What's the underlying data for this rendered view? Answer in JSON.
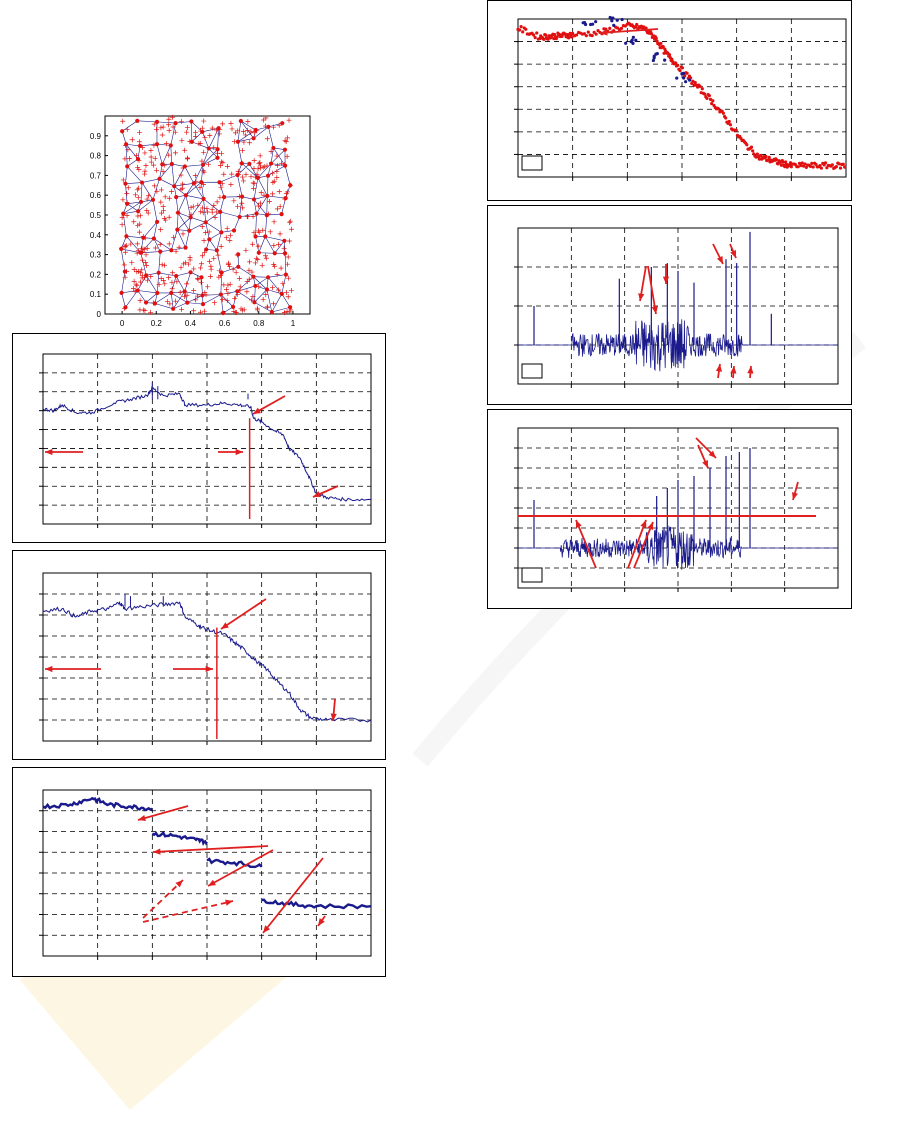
{
  "colors": {
    "series": "#1a1a8c",
    "marker": "#e01010",
    "arrow": "#e02020",
    "grid": "#000000"
  },
  "chart_data": [
    {
      "id": "scatter-network",
      "type": "scatter",
      "xlim": [
        -0.1,
        1.1
      ],
      "ylim": [
        0,
        1
      ],
      "xticks": [
        "0",
        "0.2",
        "0.4",
        "0.6",
        "0.8",
        "1"
      ],
      "yticks": [
        "0",
        "0.1",
        "0.2",
        "0.3",
        "0.4",
        "0.5",
        "0.6",
        "0.7",
        "0.8",
        "0.9"
      ],
      "grid": false,
      "series": [
        {
          "marker": "plus",
          "color": "#e01010",
          "note_count": 420
        },
        {
          "marker": "dot",
          "color": "#e01010",
          "note_count": 120
        }
      ]
    },
    {
      "id": "line-a",
      "type": "line",
      "xlim": [
        0,
        6
      ],
      "ylim": [
        0,
        9
      ],
      "grid": true,
      "series": [
        {
          "color": "#1a1a8c",
          "points": [
            [
              0,
              6.1
            ],
            [
              0.2,
              6.0
            ],
            [
              0.35,
              6.3
            ],
            [
              0.6,
              5.9
            ],
            [
              0.9,
              5.9
            ],
            [
              1.3,
              6.4
            ],
            [
              1.6,
              6.6
            ],
            [
              1.9,
              6.8
            ],
            [
              2.0,
              7.2
            ],
            [
              2.2,
              6.8
            ],
            [
              2.5,
              6.9
            ],
            [
              2.6,
              6.3
            ],
            [
              3.0,
              6.3
            ],
            [
              3.3,
              6.4
            ],
            [
              3.6,
              6.3
            ],
            [
              3.8,
              6.2
            ],
            [
              3.85,
              5.6
            ],
            [
              4.0,
              5.4
            ],
            [
              4.2,
              5.0
            ],
            [
              4.4,
              4.7
            ],
            [
              4.5,
              4.0
            ],
            [
              4.7,
              3.5
            ],
            [
              4.85,
              2.6
            ],
            [
              5.0,
              1.6
            ],
            [
              5.2,
              1.4
            ],
            [
              5.5,
              1.3
            ],
            [
              6.0,
              1.3
            ]
          ]
        }
      ]
    },
    {
      "id": "line-b",
      "type": "line",
      "xlim": [
        0,
        6
      ],
      "ylim": [
        0,
        8
      ],
      "grid": true,
      "series": [
        {
          "color": "#1a1a8c",
          "points": [
            [
              0,
              6.2
            ],
            [
              0.35,
              6.3
            ],
            [
              0.6,
              5.9
            ],
            [
              0.9,
              6.2
            ],
            [
              1.2,
              6.3
            ],
            [
              1.4,
              6.6
            ],
            [
              1.5,
              6.3
            ],
            [
              1.8,
              6.4
            ],
            [
              2.2,
              6.5
            ],
            [
              2.5,
              6.6
            ],
            [
              2.6,
              5.9
            ],
            [
              2.85,
              5.5
            ],
            [
              3.0,
              5.3
            ],
            [
              3.3,
              5.1
            ],
            [
              3.5,
              4.7
            ],
            [
              3.7,
              4.3
            ],
            [
              3.9,
              3.8
            ],
            [
              4.1,
              3.4
            ],
            [
              4.3,
              2.8
            ],
            [
              4.5,
              2.3
            ],
            [
              4.7,
              1.5
            ],
            [
              4.9,
              1.1
            ],
            [
              5.2,
              1.0
            ],
            [
              6.0,
              1.0
            ]
          ]
        }
      ]
    },
    {
      "id": "step-c",
      "type": "line",
      "xlim": [
        0,
        6
      ],
      "ylim": [
        0,
        8
      ],
      "grid": true,
      "series": [
        {
          "color": "#1a1a8c",
          "points": [
            [
              0,
              7.2
            ],
            [
              0.5,
              7.3
            ],
            [
              0.9,
              7.6
            ],
            [
              1.2,
              7.3
            ],
            [
              1.6,
              7.2
            ],
            [
              2.0,
              7.1
            ]
          ]
        },
        {
          "color": "#1a1a8c",
          "points": [
            [
              2.0,
              5.9
            ],
            [
              2.4,
              5.8
            ],
            [
              2.8,
              5.6
            ],
            [
              3.0,
              5.5
            ]
          ]
        },
        {
          "color": "#1a1a8c",
          "points": [
            [
              3.0,
              4.6
            ],
            [
              3.5,
              4.5
            ],
            [
              4.0,
              4.3
            ]
          ]
        },
        {
          "color": "#1a1a8c",
          "points": [
            [
              4.0,
              2.7
            ],
            [
              4.5,
              2.5
            ],
            [
              5.0,
              2.4
            ],
            [
              6.0,
              2.4
            ]
          ]
        }
      ]
    },
    {
      "id": "dots-d",
      "type": "scatter",
      "xlim": [
        0,
        6
      ],
      "ylim": [
        0,
        7
      ],
      "grid": true,
      "series": [
        {
          "color": "#e01010",
          "points": [
            [
              0,
              6.6
            ],
            [
              0.4,
              6.2
            ],
            [
              1.0,
              6.3
            ],
            [
              1.5,
              6.4
            ],
            [
              2.0,
              6.7
            ],
            [
              2.3,
              6.6
            ],
            [
              2.5,
              6.2
            ],
            [
              2.7,
              5.5
            ],
            [
              2.9,
              5.0
            ],
            [
              3.2,
              4.2
            ],
            [
              3.5,
              3.5
            ],
            [
              3.8,
              2.6
            ],
            [
              4.1,
              1.6
            ],
            [
              4.4,
              0.9
            ],
            [
              5.0,
              0.5
            ],
            [
              6.0,
              0.5
            ]
          ]
        },
        {
          "color": "#1a1a8c",
          "points": [
            [
              1.3,
              6.8
            ],
            [
              1.8,
              6.9
            ],
            [
              2.1,
              6.0
            ],
            [
              2.6,
              5.3
            ],
            [
              3.0,
              4.4
            ]
          ]
        }
      ]
    },
    {
      "id": "spikes-e",
      "type": "line",
      "xlim": [
        0,
        6
      ],
      "ylim": [
        -1,
        3
      ],
      "grid": true,
      "spike_x": [
        0.3,
        1.9,
        2.5,
        2.8,
        3.0,
        3.3,
        3.9,
        4.1,
        4.35,
        4.75
      ],
      "spike_y": [
        1.0,
        1.7,
        2.0,
        2.1,
        1.9,
        1.6,
        2.2,
        2.1,
        2.9,
        0.8
      ]
    },
    {
      "id": "spikes-f",
      "type": "line",
      "xlim": [
        0,
        6
      ],
      "ylim": [
        -1,
        3
      ],
      "grid": true,
      "spike_x": [
        0.3,
        2.6,
        2.8,
        3.0,
        3.3,
        3.6,
        3.9,
        4.15,
        4.35
      ],
      "spike_y": [
        1.2,
        1.3,
        1.5,
        1.7,
        1.8,
        2.0,
        2.3,
        2.4,
        2.5
      ],
      "threshold": 0.8
    }
  ]
}
